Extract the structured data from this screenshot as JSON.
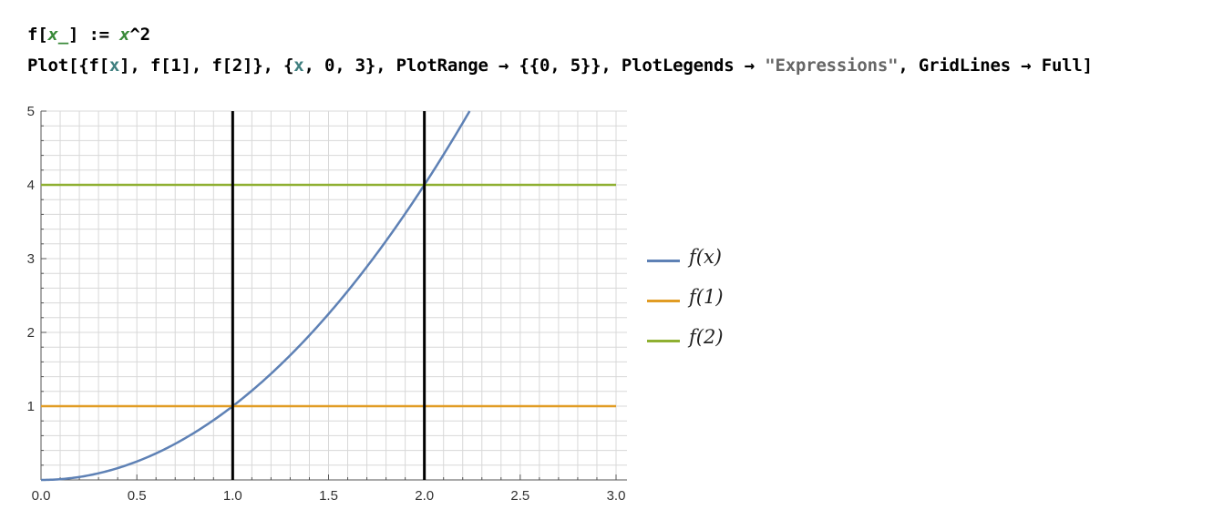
{
  "code": {
    "line1": {
      "head": "f[",
      "pattern": "x_",
      "mid": "] := ",
      "var": "x",
      "tail": "^2"
    },
    "line2": {
      "p1": "Plot[{f[",
      "x1": "x",
      "p2": "], f[1], f[2]}, {",
      "x2": "x",
      "p3": ", 0, 3}, PlotRange → {{0, 5}}, PlotLegends → ",
      "str": "\"Expressions\"",
      "p4": ", GridLines → Full]"
    }
  },
  "chart_data": {
    "type": "line",
    "xlim": [
      0,
      3
    ],
    "ylim": [
      0,
      5
    ],
    "xticks": [
      "0.0",
      "0.5",
      "1.0",
      "1.5",
      "2.0",
      "2.5",
      "3.0"
    ],
    "yticks": [
      "1",
      "2",
      "3",
      "4",
      "5"
    ],
    "grid": true,
    "legend_position": "right",
    "series": [
      {
        "name": "f(x)",
        "function": "x^2",
        "color": "#5e81b5"
      },
      {
        "name": "f(1)",
        "constant": 1,
        "color": "#e19c24"
      },
      {
        "name": "f(2)",
        "constant": 4,
        "color": "#8fb032"
      }
    ],
    "vertical_lines": [
      1,
      2
    ],
    "vertical_line_color": "#000000"
  }
}
